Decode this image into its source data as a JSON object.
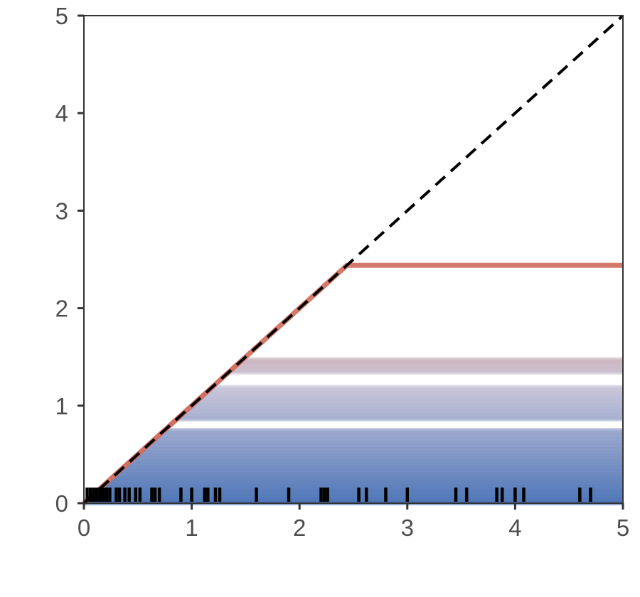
{
  "chart_data": {
    "type": "line",
    "title": "",
    "xlabel": "",
    "ylabel": "",
    "xlim": [
      0,
      5
    ],
    "ylim": [
      0,
      5
    ],
    "x_ticks": [
      "0",
      "1",
      "2",
      "3",
      "4",
      "5"
    ],
    "y_ticks": [
      "0",
      "1",
      "2",
      "3",
      "4",
      "5"
    ],
    "grid": false,
    "legend": "none",
    "colors": {
      "low": "#3a66b0",
      "mid": "#c6c2d6",
      "high": "#d06a5a",
      "reference_line": "#000000",
      "rug": "#000000",
      "axis": "#333333"
    },
    "reference_line": {
      "style": "dashed",
      "points": [
        [
          0,
          0
        ],
        [
          5,
          5
        ]
      ]
    },
    "capped_lines": {
      "description": "Lines y = min(x, cap), colored by cap value (blue low to red high)",
      "cap_bands": [
        [
          0.0,
          0.76
        ],
        [
          0.86,
          1.19
        ],
        [
          1.34,
          1.48
        ]
      ],
      "max_cap": 2.44
    },
    "rug_x": [
      0.03,
      0.06,
      0.09,
      0.12,
      0.15,
      0.18,
      0.21,
      0.24,
      0.3,
      0.33,
      0.38,
      0.42,
      0.48,
      0.52,
      0.63,
      0.66,
      0.7,
      0.9,
      1.0,
      1.12,
      1.15,
      1.22,
      1.26,
      1.6,
      1.9,
      2.2,
      2.23,
      2.26,
      2.55,
      2.62,
      2.8,
      3.0,
      3.45,
      3.55,
      3.83,
      3.88,
      4.0,
      4.08,
      4.6,
      4.7
    ]
  }
}
